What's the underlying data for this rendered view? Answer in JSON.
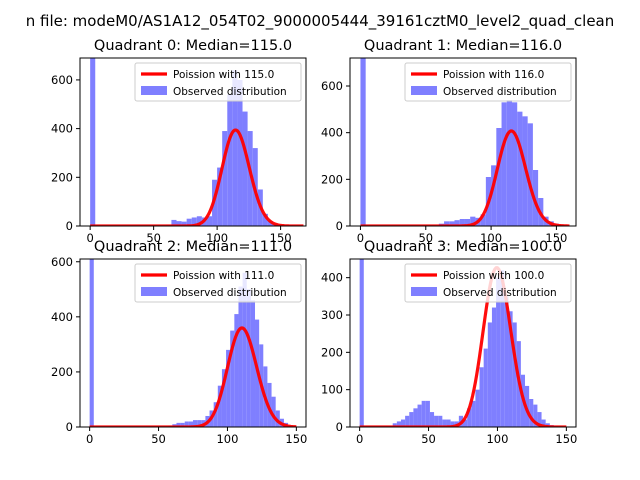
{
  "suptitle": "n file: modeM0/AS1A12_054T02_9000005444_39161cztM0_level2_quad_clean",
  "colors": {
    "poisson": "#ff0000",
    "observed": "#7f7fff"
  },
  "chart_data": [
    {
      "type": "histogram+line",
      "title": "Quadrant 0: Median=115.0",
      "xlim": [
        -8,
        170
      ],
      "ylim": [
        0,
        690
      ],
      "xticks": [
        0,
        50,
        100,
        150
      ],
      "yticks": [
        0,
        200,
        400,
        600
      ],
      "legend": {
        "position": "top-right",
        "entries": [
          "Poission with 115.0",
          "Observed distribution"
        ]
      },
      "poisson_mean": 115.0,
      "poisson_scale": 10600,
      "histogram": {
        "bin_edges": [
          0,
          4,
          8,
          12,
          16,
          20,
          24,
          28,
          32,
          36,
          40,
          44,
          48,
          52,
          56,
          60,
          64,
          68,
          72,
          76,
          80,
          84,
          88,
          92,
          96,
          100,
          104,
          108,
          112,
          116,
          120,
          124,
          128,
          132,
          136,
          140,
          144,
          148,
          152,
          156,
          160,
          164,
          168
        ],
        "counts": [
          690,
          3,
          3,
          3,
          3,
          3,
          3,
          3,
          3,
          3,
          3,
          3,
          3,
          3,
          3,
          5,
          25,
          20,
          18,
          30,
          35,
          40,
          35,
          40,
          190,
          240,
          390,
          540,
          640,
          600,
          470,
          390,
          320,
          150,
          50,
          20,
          10,
          5,
          3,
          3,
          2,
          1
        ]
      }
    },
    {
      "type": "histogram+line",
      "title": "Quadrant 1: Median=116.0",
      "xlim": [
        -8,
        165
      ],
      "ylim": [
        0,
        720
      ],
      "xticks": [
        0,
        50,
        100,
        150
      ],
      "yticks": [
        0,
        200,
        400,
        600
      ],
      "legend": {
        "position": "top-right",
        "entries": [
          "Poission with 116.0",
          "Observed distribution"
        ]
      },
      "poisson_mean": 116.0,
      "poisson_scale": 11000,
      "histogram": {
        "bin_edges": [
          0,
          4,
          8,
          12,
          16,
          20,
          24,
          28,
          32,
          36,
          40,
          44,
          48,
          52,
          56,
          60,
          64,
          68,
          72,
          76,
          80,
          84,
          88,
          92,
          96,
          100,
          104,
          108,
          112,
          116,
          120,
          124,
          128,
          132,
          136,
          140,
          144,
          148,
          152,
          156,
          160
        ],
        "counts": [
          720,
          3,
          3,
          3,
          3,
          3,
          3,
          3,
          3,
          3,
          3,
          3,
          3,
          3,
          3,
          10,
          20,
          20,
          25,
          30,
          30,
          40,
          35,
          50,
          210,
          260,
          420,
          530,
          540,
          530,
          490,
          470,
          440,
          240,
          120,
          40,
          20,
          10,
          5,
          2
        ]
      }
    },
    {
      "type": "histogram+line",
      "title": "Quadrant 2: Median=111.0",
      "xlim": [
        -7,
        157
      ],
      "ylim": [
        0,
        610
      ],
      "xticks": [
        0,
        50,
        100,
        150
      ],
      "yticks": [
        0,
        200,
        400,
        600
      ],
      "legend": {
        "position": "top-right",
        "entries": [
          "Poission with 111.0",
          "Observed distribution"
        ]
      },
      "poisson_mean": 111.0,
      "poisson_scale": 9500,
      "histogram": {
        "bin_edges": [
          0,
          3,
          6,
          9,
          12,
          15,
          18,
          21,
          24,
          27,
          30,
          33,
          36,
          39,
          42,
          45,
          48,
          51,
          54,
          57,
          60,
          63,
          66,
          69,
          72,
          75,
          78,
          81,
          84,
          87,
          90,
          93,
          96,
          99,
          102,
          105,
          108,
          111,
          114,
          117,
          120,
          123,
          126,
          129,
          132,
          135,
          138,
          141,
          144,
          147,
          150
        ],
        "counts": [
          610,
          3,
          3,
          3,
          3,
          3,
          3,
          3,
          3,
          3,
          3,
          3,
          3,
          3,
          3,
          3,
          3,
          3,
          3,
          5,
          10,
          15,
          15,
          20,
          20,
          25,
          25,
          25,
          40,
          60,
          90,
          150,
          210,
          280,
          350,
          410,
          510,
          560,
          500,
          460,
          390,
          300,
          220,
          160,
          110,
          60,
          30,
          15,
          5,
          3
        ]
      }
    },
    {
      "type": "histogram+line",
      "title": "Quadrant 3: Median=100.0",
      "xlim": [
        -7,
        157
      ],
      "ylim": [
        0,
        450
      ],
      "xticks": [
        0,
        50,
        100,
        150
      ],
      "yticks": [
        0,
        100,
        200,
        300,
        400
      ],
      "legend": {
        "position": "top-right",
        "entries": [
          "Poission with 100.0",
          "Observed distribution"
        ]
      },
      "poisson_mean": 100.0,
      "poisson_scale": 10700,
      "histogram": {
        "bin_edges": [
          0,
          3,
          6,
          9,
          12,
          15,
          18,
          21,
          24,
          27,
          30,
          33,
          36,
          39,
          42,
          45,
          48,
          51,
          54,
          57,
          60,
          63,
          66,
          69,
          72,
          75,
          78,
          81,
          84,
          87,
          90,
          93,
          96,
          99,
          102,
          105,
          108,
          111,
          114,
          117,
          120,
          123,
          126,
          129,
          132,
          135,
          138,
          141,
          144,
          147,
          150
        ],
        "counts": [
          450,
          3,
          3,
          3,
          3,
          3,
          3,
          3,
          10,
          15,
          20,
          30,
          40,
          50,
          60,
          70,
          70,
          40,
          30,
          30,
          20,
          20,
          15,
          15,
          30,
          20,
          50,
          70,
          100,
          160,
          210,
          280,
          320,
          400,
          420,
          350,
          310,
          280,
          230,
          140,
          110,
          75,
          60,
          40,
          20,
          10,
          5,
          3,
          2,
          1
        ]
      }
    }
  ]
}
